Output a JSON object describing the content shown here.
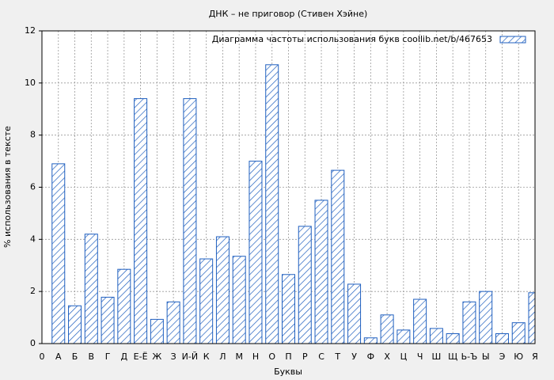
{
  "chart_data": {
    "type": "bar",
    "title": "ДНК – не приговор (Стивен Хэйне)",
    "x_label": "Буквы",
    "y_label": "% использования в тексте",
    "categories": [
      "0",
      "А",
      "Б",
      "В",
      "Г",
      "Д",
      "Е-Ё",
      "Ж",
      "З",
      "И-Й",
      "К",
      "Л",
      "М",
      "Н",
      "О",
      "П",
      "Р",
      "С",
      "Т",
      "У",
      "Ф",
      "Х",
      "Ц",
      "Ч",
      "Ш",
      "Щ",
      "Ь-Ъ",
      "Ы",
      "Э",
      "Ю",
      "Я"
    ],
    "series": [
      {
        "name": "Диаграмма частоты использования букв  coollib.net/b/467653",
        "color": "#1f5fbf",
        "values": [
          null,
          6.9,
          1.45,
          4.2,
          1.78,
          2.85,
          9.4,
          0.93,
          1.6,
          9.4,
          3.25,
          4.1,
          3.35,
          7.0,
          10.7,
          2.65,
          4.5,
          5.5,
          6.65,
          2.28,
          0.22,
          1.1,
          0.52,
          1.7,
          0.58,
          0.38,
          1.6,
          2.0,
          0.38,
          0.8,
          1.95
        ]
      }
    ],
    "ylim": [
      0,
      12
    ],
    "yticks": [
      0,
      2,
      4,
      6,
      8,
      10,
      12
    ],
    "grid": true,
    "legend": "top-right"
  }
}
